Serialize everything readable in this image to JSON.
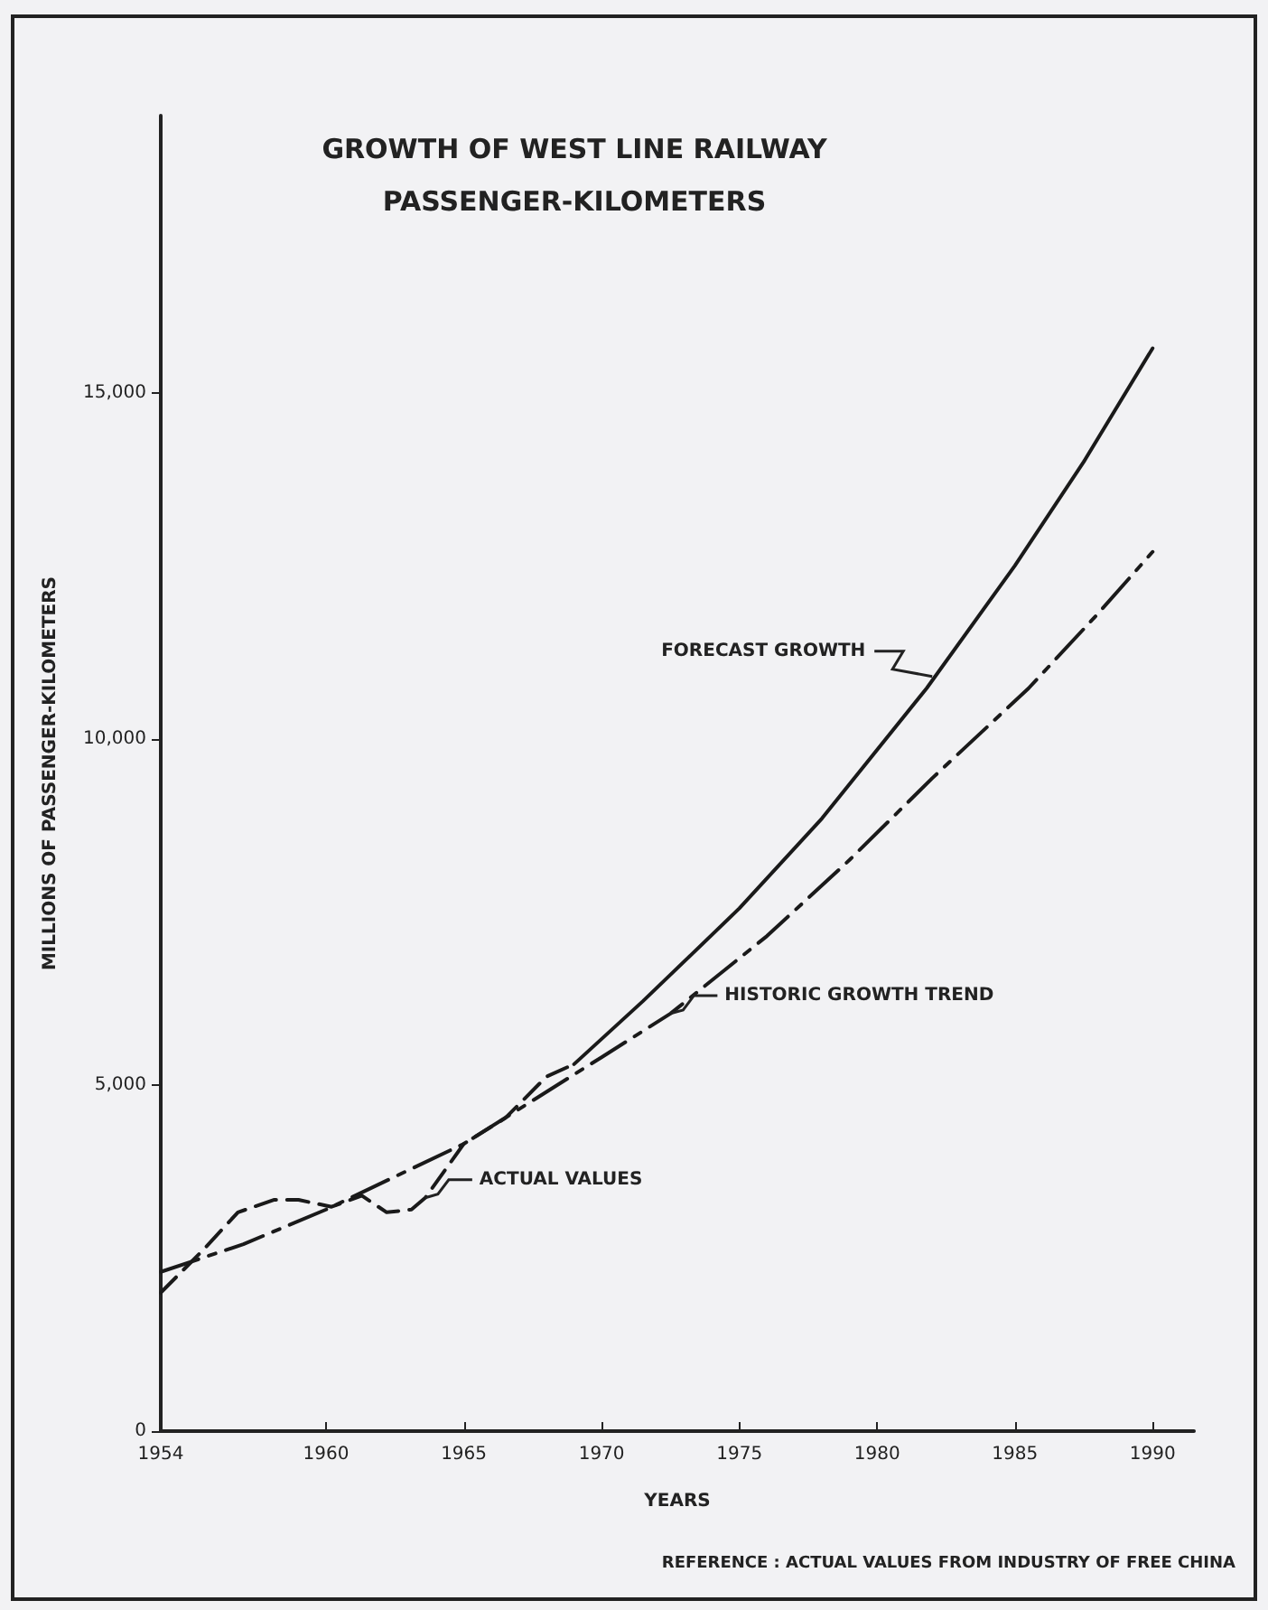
{
  "chart_data": {
    "type": "line",
    "title": "GROWTH OF WEST LINE RAILWAY",
    "subtitle": "PASSENGER-KILOMETERS",
    "xlabel": "YEARS",
    "ylabel": "MILLIONS OF PASSENGER-KILOMETERS",
    "series": [
      {
        "color": "#1a1a1a",
        "line_style": "dashed",
        "x": [
          1954,
          1955.5,
          1956.8,
          1958.1,
          1959,
          1960.2,
          1961.3,
          1962.2,
          1963.1,
          1963.6,
          1965,
          1966.5,
          1968,
          1969
        ],
        "values": [
          2000,
          2600,
          3160,
          3340,
          3340,
          3240,
          3400,
          3160,
          3200,
          3370,
          4150,
          4520,
          5120,
          5300
        ]
      },
      {
        "color": "#1a1a1a",
        "line_style": "dashdot",
        "x": [
          1954,
          1957,
          1960,
          1965,
          1970,
          1972.5,
          1976,
          1979,
          1982,
          1985.5,
          1988,
          1990
        ],
        "values": [
          2300,
          2700,
          3200,
          4150,
          5400,
          6030,
          7150,
          8250,
          9430,
          10730,
          11800,
          12700
        ]
      },
      {
        "color": "#1a1a1a",
        "line_style": "solid",
        "x": [
          1969,
          1971.5,
          1975,
          1978,
          1981.8,
          1985,
          1987.5,
          1990
        ],
        "values": [
          5300,
          6210,
          7550,
          8850,
          10730,
          12500,
          14000,
          15640
        ]
      }
    ],
    "xlim": [
      1954,
      1991.5
    ],
    "xticks": [
      1954,
      1960,
      1965,
      1970,
      1975,
      1980,
      1985,
      1990
    ],
    "ylim": [
      0,
      19000
    ],
    "yticks": [
      0,
      {
        "value": 5000,
        "label": "5,000"
      },
      {
        "value": 10000,
        "label": "10,000"
      },
      {
        "value": 15000,
        "label": "15,000"
      }
    ],
    "annotations": [
      {
        "text": "FORECAST GROWTH",
        "x": 1982,
        "y": 10900
      },
      {
        "text": "HISTORIC GROWTH TREND",
        "x": 1972.5,
        "y": 6030
      },
      {
        "text": "ACTUAL VALUES",
        "x": 1963.6,
        "y": 3370
      },
      "REFERENCE : ACTUAL VALUES FROM INDUSTRY OF FREE CHINA"
    ],
    "grid": false,
    "marker": "none"
  }
}
